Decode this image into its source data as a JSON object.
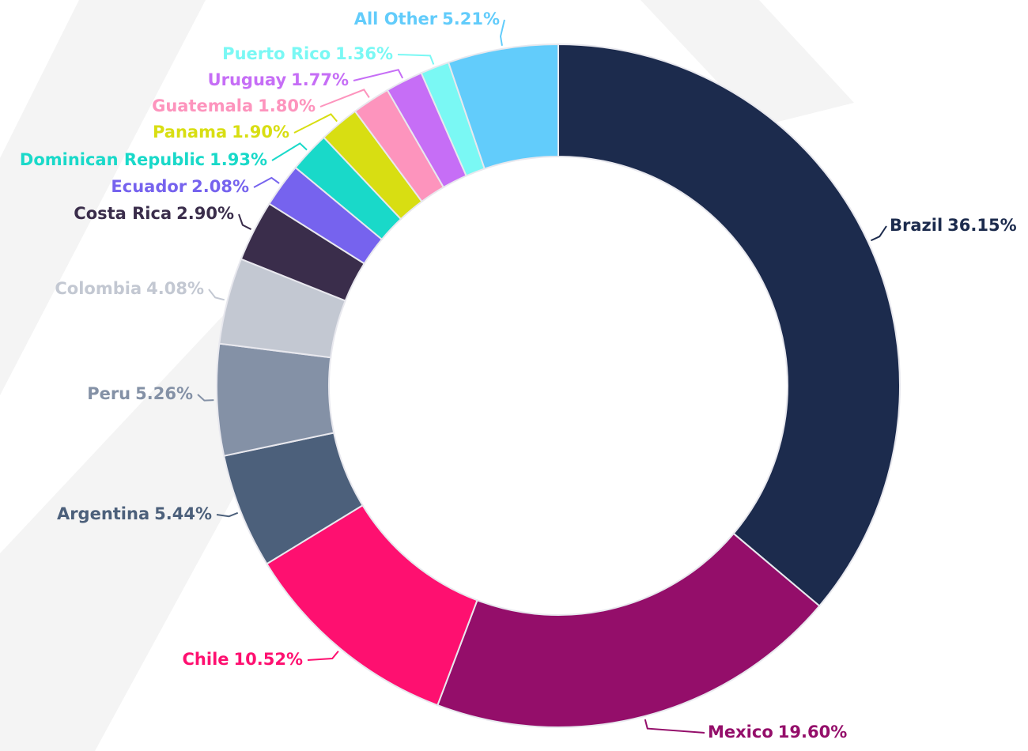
{
  "chart_data": {
    "type": "donut",
    "categories": [
      "Brazil",
      "Mexico",
      "Chile",
      "Argentina",
      "Peru",
      "Colombia",
      "Costa Rica",
      "Ecuador",
      "Dominican Republic",
      "Panama",
      "Guatemala",
      "Uruguay",
      "Puerto Rico",
      "All Other"
    ],
    "values": [
      36.15,
      19.6,
      10.52,
      5.44,
      5.26,
      4.08,
      2.9,
      2.08,
      1.93,
      1.9,
      1.8,
      1.77,
      1.36,
      5.21
    ],
    "value_labels": [
      "36.15%",
      "19.60%",
      "10.52%",
      "5.44%",
      "5.26%",
      "4.08%",
      "2.90%",
      "2.08%",
      "1.93%",
      "1.90%",
      "1.80%",
      "1.77%",
      "1.36%",
      "5.21%"
    ],
    "colors": [
      "#1c2b4d",
      "#940e6a",
      "#fe1070",
      "#4c607b",
      "#8491a6",
      "#c3c8d2",
      "#3a2d4b",
      "#7663ee",
      "#19d9c9",
      "#d8de12",
      "#fd94bd",
      "#c66ef6",
      "#7af8f4",
      "#62ccfb"
    ]
  }
}
